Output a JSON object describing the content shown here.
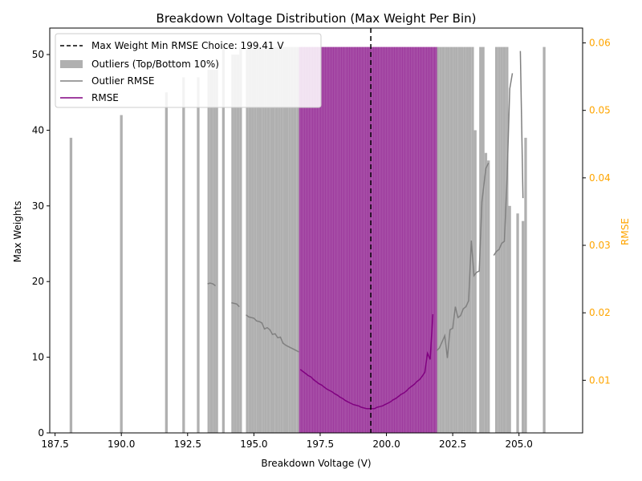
{
  "chart_data": {
    "type": "bar",
    "title": "Breakdown Voltage Distribution (Max Weight Per Bin)",
    "xlabel": "Breakdown Voltage (V)",
    "ylabel": "Max Weights",
    "y2label": "RMSE",
    "xlim": [
      187.3,
      207.4
    ],
    "ylim": [
      0,
      53.5
    ],
    "y2lim": [
      0.0022,
      0.0622
    ],
    "xticks": [
      187.5,
      190.0,
      192.5,
      195.0,
      197.5,
      200.0,
      202.5,
      205.0
    ],
    "xtick_labels": [
      "187.5",
      "190.0",
      "192.5",
      "195.0",
      "197.5",
      "200.0",
      "202.5",
      "205.0"
    ],
    "yticks": [
      0,
      10,
      20,
      30,
      40,
      50
    ],
    "ytick_labels": [
      "0",
      "10",
      "20",
      "30",
      "40",
      "50"
    ],
    "y2ticks": [
      0.01,
      0.02,
      0.03,
      0.04,
      0.05,
      0.06
    ],
    "y2tick_labels": [
      "0.01",
      "0.02",
      "0.03",
      "0.04",
      "0.05",
      "0.06"
    ],
    "grid": false,
    "legend_position": "top-left",
    "legend": [
      {
        "label": "Max Weight Min RMSE Choice: 199.41 V",
        "kind": "dashed-line",
        "color": "#000000"
      },
      {
        "label": "Outliers (Top/Bottom 10%)",
        "kind": "patch",
        "color": "#b0b0b0"
      },
      {
        "label": "Outlier RMSE",
        "kind": "line",
        "color": "#808080"
      },
      {
        "label": "RMSE",
        "kind": "line",
        "color": "#800080"
      }
    ],
    "vline": {
      "x": 199.41,
      "label": "Max Weight Min RMSE Choice: 199.41 V"
    },
    "bin_width": 0.1,
    "series": [
      {
        "name": "Outliers (Top/Bottom 10%)",
        "color": "#b0b0b0",
        "points": [
          [
            188.1,
            39
          ],
          [
            190.0,
            42
          ],
          [
            191.7,
            45
          ],
          [
            192.35,
            47
          ],
          [
            192.9,
            47
          ],
          [
            193.3,
            48
          ],
          [
            193.4,
            48
          ],
          [
            193.5,
            48
          ],
          [
            193.6,
            48
          ],
          [
            193.85,
            51
          ],
          [
            194.2,
            50
          ],
          [
            194.3,
            50
          ],
          [
            194.4,
            50
          ],
          [
            194.5,
            51
          ],
          [
            194.75,
            51
          ],
          [
            194.85,
            51
          ],
          [
            194.95,
            51
          ],
          [
            195.05,
            51
          ],
          [
            195.15,
            51
          ],
          [
            195.25,
            51
          ],
          [
            195.35,
            51
          ],
          [
            195.45,
            51
          ],
          [
            195.55,
            51
          ],
          [
            195.65,
            51
          ],
          [
            195.75,
            51
          ],
          [
            195.85,
            51
          ],
          [
            195.95,
            51
          ],
          [
            196.05,
            51
          ],
          [
            196.15,
            51
          ],
          [
            196.25,
            51
          ],
          [
            196.35,
            51
          ],
          [
            196.45,
            51
          ],
          [
            196.55,
            51
          ],
          [
            196.65,
            51
          ],
          [
            201.95,
            51
          ],
          [
            202.05,
            51
          ],
          [
            202.15,
            51
          ],
          [
            202.25,
            51
          ],
          [
            202.35,
            51
          ],
          [
            202.45,
            51
          ],
          [
            202.55,
            51
          ],
          [
            202.65,
            51
          ],
          [
            202.75,
            51
          ],
          [
            202.85,
            51
          ],
          [
            202.95,
            51
          ],
          [
            203.05,
            51
          ],
          [
            203.15,
            51
          ],
          [
            203.25,
            51
          ],
          [
            203.35,
            40
          ],
          [
            203.55,
            51
          ],
          [
            203.65,
            51
          ],
          [
            203.75,
            37
          ],
          [
            203.85,
            36
          ],
          [
            204.15,
            51
          ],
          [
            204.25,
            51
          ],
          [
            204.35,
            51
          ],
          [
            204.45,
            51
          ],
          [
            204.55,
            51
          ],
          [
            204.65,
            30
          ],
          [
            204.95,
            29
          ],
          [
            205.15,
            28
          ],
          [
            205.25,
            39
          ],
          [
            205.95,
            51
          ]
        ]
      },
      {
        "name": "Inliers",
        "color": "#800080",
        "values_at": "bins from 196.75 to 201.85 step 0.1",
        "value": 51
      }
    ],
    "rmse_outlier": [
      [
        [
          193.25,
          0.0243
        ],
        [
          193.35,
          0.0244
        ],
        [
          193.45,
          0.0243
        ],
        [
          193.55,
          0.024
        ]
      ],
      [
        [
          194.15,
          0.0215
        ],
        [
          194.25,
          0.0214
        ],
        [
          194.35,
          0.0213
        ],
        [
          194.45,
          0.0209
        ]
      ],
      [
        [
          194.7,
          0.0197
        ],
        [
          194.8,
          0.0194
        ],
        [
          194.9,
          0.0193
        ],
        [
          195.0,
          0.0192
        ],
        [
          195.1,
          0.0188
        ],
        [
          195.2,
          0.0187
        ],
        [
          195.3,
          0.0185
        ],
        [
          195.4,
          0.0176
        ],
        [
          195.5,
          0.0178
        ],
        [
          195.6,
          0.0175
        ],
        [
          195.7,
          0.0168
        ],
        [
          195.8,
          0.0169
        ],
        [
          195.9,
          0.0163
        ],
        [
          196.0,
          0.0164
        ],
        [
          196.1,
          0.0155
        ],
        [
          196.2,
          0.0152
        ],
        [
          196.3,
          0.015
        ],
        [
          196.4,
          0.0148
        ],
        [
          196.5,
          0.0146
        ],
        [
          196.6,
          0.0144
        ],
        [
          196.7,
          0.0142
        ]
      ],
      [
        [
          201.9,
          0.0144
        ],
        [
          202.0,
          0.0148
        ],
        [
          202.1,
          0.0157
        ],
        [
          202.2,
          0.0166
        ],
        [
          202.3,
          0.0133
        ],
        [
          202.4,
          0.0175
        ],
        [
          202.5,
          0.0177
        ],
        [
          202.6,
          0.0209
        ],
        [
          202.7,
          0.0193
        ],
        [
          202.8,
          0.0196
        ],
        [
          202.9,
          0.0206
        ],
        [
          203.0,
          0.0209
        ],
        [
          203.1,
          0.0218
        ],
        [
          203.2,
          0.0307
        ],
        [
          203.3,
          0.0255
        ],
        [
          203.4,
          0.026
        ],
        [
          203.5,
          0.0262
        ],
        [
          203.6,
          0.0364
        ],
        [
          203.75,
          0.0414
        ],
        [
          203.85,
          0.0422
        ]
      ],
      [
        [
          204.05,
          0.0285
        ],
        [
          204.15,
          0.0291
        ],
        [
          204.25,
          0.0294
        ],
        [
          204.35,
          0.0303
        ],
        [
          204.45,
          0.0306
        ],
        [
          204.55,
          0.0401
        ],
        [
          204.65,
          0.0532
        ],
        [
          204.75,
          0.0555
        ]
      ],
      [
        [
          205.05,
          0.0588
        ],
        [
          205.15,
          0.037
        ]
      ]
    ],
    "rmse": [
      [
        196.75,
        0.0116
      ],
      [
        196.85,
        0.0113
      ],
      [
        196.95,
        0.011
      ],
      [
        197.05,
        0.0107
      ],
      [
        197.15,
        0.0105
      ],
      [
        197.25,
        0.0101
      ],
      [
        197.35,
        0.0098
      ],
      [
        197.45,
        0.0095
      ],
      [
        197.55,
        0.0093
      ],
      [
        197.65,
        0.009
      ],
      [
        197.75,
        0.0087
      ],
      [
        197.85,
        0.0085
      ],
      [
        197.95,
        0.0083
      ],
      [
        198.05,
        0.008
      ],
      [
        198.15,
        0.0078
      ],
      [
        198.25,
        0.0075
      ],
      [
        198.35,
        0.0073
      ],
      [
        198.45,
        0.007
      ],
      [
        198.55,
        0.0068
      ],
      [
        198.65,
        0.0066
      ],
      [
        198.75,
        0.0064
      ],
      [
        198.85,
        0.0063
      ],
      [
        198.95,
        0.0062
      ],
      [
        199.05,
        0.006
      ],
      [
        199.15,
        0.0059
      ],
      [
        199.25,
        0.0058
      ],
      [
        199.35,
        0.0058
      ],
      [
        199.45,
        0.0058
      ],
      [
        199.55,
        0.0058
      ],
      [
        199.65,
        0.006
      ],
      [
        199.75,
        0.0061
      ],
      [
        199.85,
        0.0062
      ],
      [
        199.95,
        0.0064
      ],
      [
        200.05,
        0.0066
      ],
      [
        200.15,
        0.0068
      ],
      [
        200.25,
        0.0071
      ],
      [
        200.35,
        0.0073
      ],
      [
        200.45,
        0.0076
      ],
      [
        200.55,
        0.0079
      ],
      [
        200.65,
        0.0081
      ],
      [
        200.75,
        0.0084
      ],
      [
        200.85,
        0.0088
      ],
      [
        200.95,
        0.0091
      ],
      [
        201.05,
        0.0094
      ],
      [
        201.15,
        0.0098
      ],
      [
        201.25,
        0.0101
      ],
      [
        201.35,
        0.0106
      ],
      [
        201.45,
        0.0112
      ],
      [
        201.55,
        0.014
      ],
      [
        201.65,
        0.0131
      ],
      [
        201.75,
        0.0198
      ]
    ]
  },
  "colors": {
    "outlier_bar": "#b0b0b0",
    "inlier_bar": "#800080",
    "rmse_line": "#800080",
    "outlier_rmse_line": "#808080",
    "right_axis": "#ffa500",
    "vline": "#000000"
  }
}
